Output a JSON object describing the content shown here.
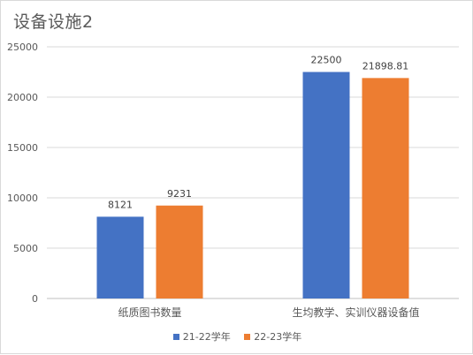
{
  "chart_data": {
    "type": "bar",
    "title": "设备设施2",
    "categories": [
      "纸质图书数量",
      "生均教学、实训仪器设备值"
    ],
    "series": [
      {
        "name": "21-22学年",
        "color": "#4472c4",
        "values": [
          8121,
          22500
        ],
        "labels": [
          "8121",
          "22500"
        ]
      },
      {
        "name": "22-23学年",
        "color": "#ed7d31",
        "values": [
          9231,
          21898.81
        ],
        "labels": [
          "9231",
          "21898.81"
        ]
      }
    ],
    "ylim": [
      0,
      25000
    ],
    "yticks": [
      "0",
      "5000",
      "10000",
      "15000",
      "20000",
      "25000"
    ],
    "grid": true,
    "legend_position": "bottom"
  }
}
